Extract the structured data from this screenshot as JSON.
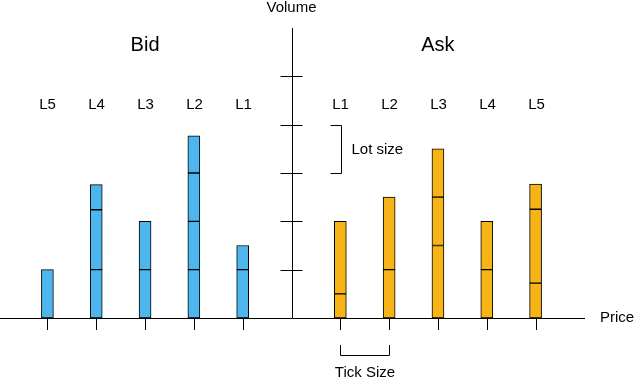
{
  "chart_data": {
    "type": "bar",
    "stacked": true,
    "x_label": "Price",
    "y_label": "Volume",
    "sides": [
      "Bid",
      "Ask"
    ],
    "categories": [
      "L5",
      "L4",
      "L3",
      "L2",
      "L1",
      null,
      "L1",
      "L2",
      "L3",
      "L4",
      "L5"
    ],
    "values": [
      [
        1
      ],
      [
        1,
        1.24,
        0.52
      ],
      [
        1,
        1
      ],
      [
        1,
        1,
        1,
        0.77
      ],
      [
        1,
        0.5
      ],
      [],
      [
        0.5,
        1.5
      ],
      [
        1,
        1.5
      ],
      [
        1.5,
        1,
        1
      ],
      [
        1,
        1
      ],
      [
        0.72,
        1.53,
        0.52
      ]
    ],
    "colors": [
      "#4db6ec",
      "#4db6ec",
      "#4db6ec",
      "#4db6ec",
      "#4db6ec",
      null,
      "#f7b416",
      "#f7b416",
      "#f7b416",
      "#f7b416",
      "#f7b416"
    ],
    "ylim": [
      0,
      6
    ],
    "yticks": [
      1,
      2,
      3,
      4,
      5
    ],
    "annotations": [
      "Lot size",
      "Tick Size"
    ],
    "grid": false,
    "tick_labels": "x"
  }
}
